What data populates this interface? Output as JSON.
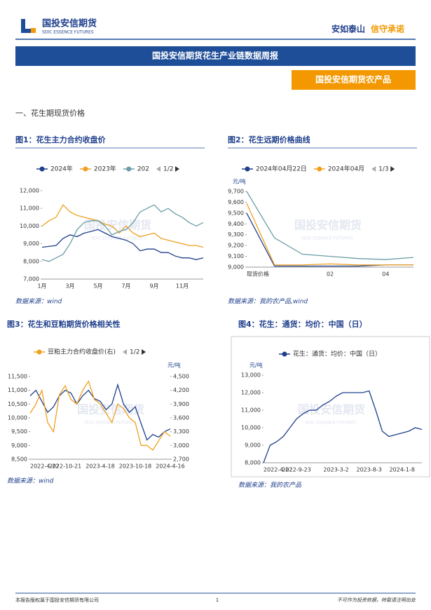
{
  "header": {
    "logo_cn": "国投安信期货",
    "logo_en": "SDIC ESSENCE FUTURES",
    "slogan1": "安如泰山",
    "slogan2": "信守承诺"
  },
  "banner": "国投安信期货花生产业链数据周报",
  "tag": "国投安信期货农产品",
  "section": "一、花生期现货价格",
  "chart_data": [
    {
      "type": "line",
      "title": "图1：花生主力合约收盘价",
      "legend_pager": "1/2",
      "categories": [
        "1月",
        null,
        null,
        null,
        "3月",
        null,
        null,
        null,
        "5月",
        null,
        null,
        null,
        "7月",
        null,
        null,
        null,
        "9月",
        null,
        null,
        null,
        "11月",
        null,
        null,
        null
      ],
      "series": [
        {
          "name": "2024年",
          "color": "#1f3f8c",
          "values": [
            8800,
            8850,
            8900,
            9300,
            9500,
            9400,
            9600,
            9700,
            9800,
            9600,
            9400,
            9300,
            9200,
            9000,
            8600,
            8700,
            8700,
            8500,
            8500,
            8300,
            8200,
            8200,
            8100,
            8200
          ]
        },
        {
          "name": "2023年",
          "color": "#f0a01e",
          "values": [
            10000,
            10300,
            10500,
            11200,
            10800,
            10600,
            10500,
            10400,
            10300,
            10100,
            10000,
            9600,
            10000,
            9600,
            9400,
            9500,
            9600,
            9300,
            9200,
            9100,
            9000,
            8900,
            8900,
            8800
          ]
        },
        {
          "name": "202",
          "color": "#6a9ea6",
          "values": [
            8100,
            8000,
            8200,
            8400,
            9000,
            9800,
            10200,
            10300,
            10300,
            10000,
            9500,
            9700,
            9800,
            10200,
            10800,
            11000,
            11200,
            10800,
            11000,
            10700,
            10500,
            10200,
            10000,
            10200
          ]
        }
      ],
      "ylim": [
        7000,
        12000
      ],
      "yticks": [
        {
          "value": 7000,
          "label": "7,000"
        },
        {
          "value": 8000,
          "label": "8,000"
        },
        {
          "value": 9000,
          "label": "9,000"
        },
        {
          "value": 10000,
          "label": "10,000"
        },
        {
          "value": 11000,
          "label": "11,000"
        },
        {
          "value": 12000,
          "label": "12,000"
        }
      ],
      "source": "数据来源：wind"
    },
    {
      "type": "line",
      "title": "图2：花生远期价格曲线",
      "legend_pager": "1/3",
      "y_unit": "元/吨",
      "categories": [
        "现货价格",
        null,
        null,
        "02",
        null,
        "04",
        null
      ],
      "series": [
        {
          "name": "2024年04月22日",
          "color": "#1f3f8c",
          "values": [
            9500,
            9010,
            9010,
            9010,
            9010,
            9020,
            9020
          ]
        },
        {
          "name": "2024年04月",
          "color": "#f0a01e",
          "values": [
            9590,
            9020,
            9020,
            9030,
            9020,
            9020,
            9020
          ]
        },
        {
          "color": "#6a9ea6",
          "values": [
            9700,
            9270,
            9120,
            9100,
            9080,
            9070,
            9090
          ]
        }
      ],
      "ylim": [
        9000,
        9700
      ],
      "yticks": [
        {
          "value": 9000,
          "label": "9,000"
        },
        {
          "value": 9100,
          "label": "9,100"
        },
        {
          "value": 9200,
          "label": "9,200"
        },
        {
          "value": 9300,
          "label": "9,300"
        },
        {
          "value": 9400,
          "label": "9,400"
        },
        {
          "value": 9500,
          "label": "9,500"
        },
        {
          "value": 9600,
          "label": "9,600"
        },
        {
          "value": 9700,
          "label": "9,700"
        }
      ],
      "source": "数据来源：我的农产品,wind"
    },
    {
      "type": "line",
      "title": "图3：花生和豆粕期货价格相关性",
      "legend_pager": "1/2",
      "y2_unit": "元/吨",
      "categories": [
        "2022-4-22",
        null,
        null,
        null,
        null,
        null,
        "2022-10-21",
        null,
        null,
        null,
        null,
        null,
        "2023-4-18",
        null,
        null,
        null,
        null,
        null,
        "2023-10-18",
        null,
        null,
        null,
        null,
        null,
        "2024-4-16"
      ],
      "series": [
        {
          "color": "#1f3f8c",
          "values": [
            10800,
            11000,
            10600,
            10200,
            10400,
            10800,
            11000,
            10900,
            10500,
            10800,
            11000,
            10700,
            10600,
            10300,
            10500,
            11200,
            10500,
            10200,
            10400,
            9800,
            9200,
            9400,
            9300,
            9500,
            9600
          ]
        },
        {
          "name": "豆粕主力合约收盘价(右)",
          "color": "#f0a01e",
          "axis": "y2",
          "values": [
            3700,
            3900,
            4200,
            3500,
            3300,
            4100,
            4300,
            4000,
            3900,
            4200,
            4400,
            4000,
            3900,
            3700,
            3500,
            3900,
            3800,
            3600,
            3500,
            3000,
            3000,
            2900,
            3100,
            3300,
            3200
          ]
        }
      ],
      "ylim": [
        8500,
        11500
      ],
      "yticks": [
        {
          "value": 8500,
          "label": "8,500"
        },
        {
          "value": 9000,
          "label": "9,000"
        },
        {
          "value": 9500,
          "label": "9,500"
        },
        {
          "value": 10000,
          "label": "10,000"
        },
        {
          "value": 10500,
          "label": "10,500"
        },
        {
          "value": 11000,
          "label": "11,000"
        },
        {
          "value": 11500,
          "label": "11,500"
        }
      ],
      "y2lim": [
        2700,
        4500
      ],
      "y2ticks": [
        {
          "value": 2700,
          "label": "2,700"
        },
        {
          "value": 3000,
          "label": "3,000"
        },
        {
          "value": 3300,
          "label": "3,300"
        },
        {
          "value": 3600,
          "label": "3,600"
        },
        {
          "value": 3900,
          "label": "3,900"
        },
        {
          "value": 4200,
          "label": "4,200"
        },
        {
          "value": 4500,
          "label": "4,500"
        }
      ],
      "source": "数据来源：wind"
    },
    {
      "type": "line",
      "title": "图4：花生：通货：均价：中国（日）",
      "y_unit": "元/吨",
      "categories": [
        "2022-4-22",
        null,
        null,
        null,
        null,
        "2022-9-23",
        null,
        null,
        null,
        null,
        null,
        "2023-3-2",
        null,
        null,
        null,
        null,
        "2023-8-3",
        null,
        null,
        null,
        null,
        "2024-1-8",
        null,
        null,
        null
      ],
      "series": [
        {
          "name": "花生：通货：均价：中国（日）",
          "color": "#1f3f8c",
          "values": [
            8000,
            9000,
            9200,
            9500,
            10000,
            10500,
            10800,
            11000,
            11000,
            11300,
            11500,
            11800,
            12000,
            12000,
            12000,
            12000,
            12100,
            11000,
            9800,
            9500,
            9600,
            9700,
            9800,
            10000,
            9900
          ]
        }
      ],
      "ylim": [
        8000,
        13000
      ],
      "yticks": [
        {
          "value": 8000,
          "label": "8,000"
        },
        {
          "value": 9000,
          "label": "9,000"
        },
        {
          "value": 10000,
          "label": "10,000"
        },
        {
          "value": 11000,
          "label": "11,000"
        },
        {
          "value": 12000,
          "label": "12,000"
        },
        {
          "value": 13000,
          "label": "13,000"
        }
      ],
      "source": "数据来源：我的农产品"
    }
  ],
  "footer": {
    "left": "本报告版权属于国投安信期货有限公司",
    "page": "1",
    "right": "不可作为投资依据，转载请注明出处"
  }
}
